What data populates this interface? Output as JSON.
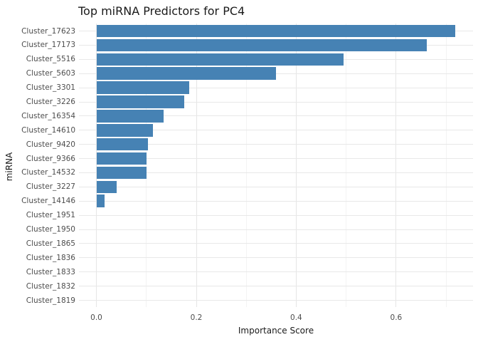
{
  "chart_data": {
    "type": "bar",
    "orientation": "horizontal",
    "title": "Top miRNA Predictors for PC4",
    "xlabel": "Importance Score",
    "ylabel": "miRNA",
    "categories": [
      "Cluster_17623",
      "Cluster_17173",
      "Cluster_5516",
      "Cluster_5603",
      "Cluster_3301",
      "Cluster_3226",
      "Cluster_16354",
      "Cluster_14610",
      "Cluster_9420",
      "Cluster_9366",
      "Cluster_14532",
      "Cluster_3227",
      "Cluster_14146",
      "Cluster_1951",
      "Cluster_1950",
      "Cluster_1865",
      "Cluster_1836",
      "Cluster_1833",
      "Cluster_1832",
      "Cluster_1819"
    ],
    "values": [
      0.718,
      0.661,
      0.494,
      0.36,
      0.186,
      0.176,
      0.135,
      0.113,
      0.103,
      0.101,
      0.101,
      0.04,
      0.017,
      0,
      0,
      0,
      0,
      0,
      0,
      0
    ],
    "x_ticks": [
      0.0,
      0.2,
      0.4,
      0.6
    ],
    "x_tick_labels": [
      "0.0",
      "0.2",
      "0.4",
      "0.6"
    ],
    "x_minor_ticks": [
      0.1,
      0.3,
      0.5,
      0.7
    ],
    "xlim": [
      -0.0349,
      0.7539
    ],
    "grid": true,
    "legend": false,
    "colors": {
      "bar": "#4682b4",
      "grid_major": "#e6e6e6",
      "grid_minor": "#f3f3f3",
      "tick_label": "#4d4d4d",
      "text": "#1a1a1a",
      "background": "#ffffff"
    }
  }
}
